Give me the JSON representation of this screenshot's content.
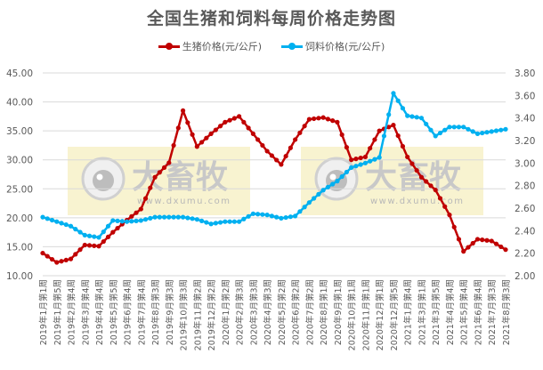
{
  "chart_data": {
    "type": "line",
    "title": "全国生猪和饲料每周价格走势图",
    "xlabel": "",
    "ylabel_left": "生猪价格(元/公斤)",
    "ylabel_right": "饲料价格(元/公斤)",
    "ylim_left": [
      10,
      45
    ],
    "ylim_right": [
      2.0,
      3.8
    ],
    "yticks_left": [
      "45.00",
      "40.00",
      "35.00",
      "30.00",
      "25.00",
      "20.00",
      "15.00",
      "10.00"
    ],
    "yticks_right": [
      "3.80",
      "3.60",
      "3.40",
      "3.20",
      "3.00",
      "2.80",
      "2.60",
      "2.40",
      "2.20",
      "2.00"
    ],
    "grid": true,
    "legend_position": "top",
    "categories": [
      "2019年1月第1周",
      "2019年1月第5周",
      "2019年2月第4周",
      "2019年3月第4周",
      "2019年4月第4周",
      "2019年5月第5周",
      "2019年6月第4周",
      "2019年7月第4周",
      "2019年8月第3周",
      "2019年9月第3周",
      "2019年10月第3周",
      "2019年11月第2周",
      "2019年12月第2周",
      "2020年1月第2周",
      "2020年2月第3周",
      "2020年3月第3周",
      "2020年4月第3周",
      "2020年5月第2周",
      "2020年6月第2周",
      "2020年7月第2周",
      "2020年8月第1周",
      "2020年9月第1周",
      "2020年10月第1周",
      "2020年11月第1周",
      "2020年12月第1周",
      "2020年12月第5周",
      "2021年1月第4周",
      "2021年3月第1周",
      "2021年3月第5周",
      "2021年4月第4周",
      "2021年5月第4周",
      "2021年6月第4周",
      "2021年7月第3周",
      "2021年8月第3周"
    ],
    "series": [
      {
        "name": "生猪价格(元/公斤)",
        "axis": "left",
        "color": "#c00000",
        "values": [
          13.9,
          12.3,
          12.9,
          15.3,
          15.1,
          17.5,
          19.6,
          21.5,
          27.0,
          29.5,
          38.5,
          32.3,
          34.5,
          36.5,
          37.5,
          34.5,
          31.5,
          29.2,
          33.5,
          37.0,
          37.3,
          36.5,
          30.0,
          30.5,
          35.0,
          36.0,
          30.5,
          27.0,
          24.8,
          20.5,
          14.2,
          16.3,
          16.0,
          14.5
        ]
      },
      {
        "name": "饲料价格(元/公斤)",
        "axis": "right",
        "color": "#00b0f0",
        "values": [
          2.52,
          2.48,
          2.44,
          2.36,
          2.34,
          2.49,
          2.48,
          2.49,
          2.52,
          2.52,
          2.52,
          2.5,
          2.46,
          2.48,
          2.48,
          2.55,
          2.54,
          2.51,
          2.53,
          2.65,
          2.76,
          2.84,
          2.96,
          3.0,
          3.05,
          3.62,
          3.42,
          3.4,
          3.24,
          3.32,
          3.32,
          3.26,
          3.28,
          3.3
        ]
      }
    ]
  },
  "legend": {
    "pig_label": "生猪价格(元/公斤)",
    "feed_label": "饲料价格(元/公斤)",
    "pig_color": "#c00000",
    "feed_color": "#00b0f0"
  },
  "watermark": {
    "brand": "大畜牧",
    "url": "www.dxumu.com"
  }
}
